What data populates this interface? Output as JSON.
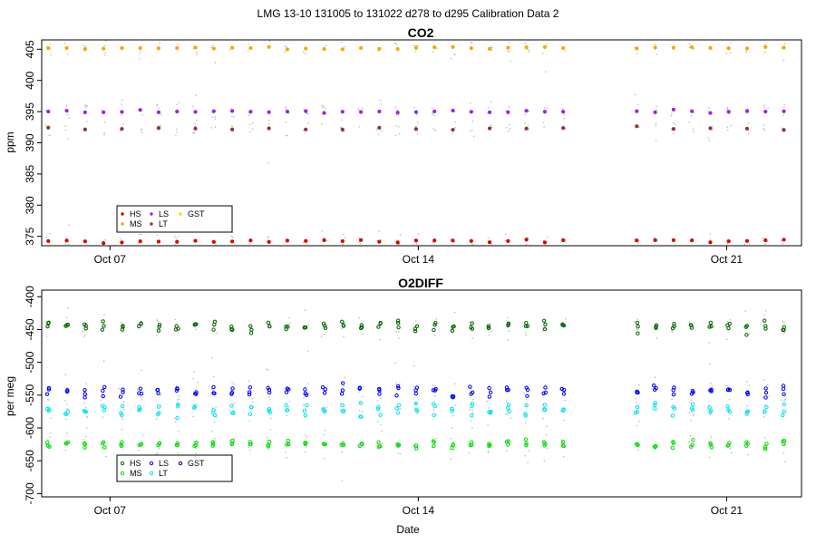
{
  "figure": {
    "supertitle": "LMG   13-10    131005 to 131022    d278 to d295   Calibration Data 2",
    "xlabel": "Date"
  },
  "chart_data": [
    {
      "type": "scatter",
      "title": "CO2",
      "ylabel": "ppm",
      "xlabel": "",
      "x_axis": {
        "type": "date",
        "range": [
          "2013-10-05",
          "2013-10-22"
        ],
        "ticks": [
          "Oct 07",
          "Oct 14",
          "Oct 21"
        ],
        "tick_dates": [
          "2013-10-07",
          "2013-10-14",
          "2013-10-21"
        ]
      },
      "y_axis": {
        "range": [
          373.5,
          406.5
        ],
        "ticks": [
          375,
          380,
          385,
          390,
          395,
          400,
          405
        ]
      },
      "grid": false,
      "legend": {
        "placement": "bottom-left",
        "entries": [
          "HS",
          "MS",
          "LS",
          "LT",
          "GST"
        ]
      },
      "gap": [
        "2013-10-17",
        "2013-10-18"
      ],
      "series": [
        {
          "name": "HS",
          "color": "#e00000",
          "marker": "filled-circle",
          "mean": 374.2
        },
        {
          "name": "MS",
          "color": "#ffa500",
          "marker": "filled-circle",
          "mean": 405.2
        },
        {
          "name": "LS",
          "color": "#a020f0",
          "marker": "filled-circle",
          "mean": 395.0
        },
        {
          "name": "LT",
          "color": "#8b3a3a",
          "marker": "filled-circle",
          "mean": 392.3
        },
        {
          "name": "GST",
          "color": "#ffd700",
          "marker": "filled-circle",
          "mean": null
        }
      ]
    },
    {
      "type": "scatter",
      "title": "O2DIFF",
      "ylabel": "per meg",
      "xlabel": "Date",
      "x_axis": {
        "type": "date",
        "range": [
          "2013-10-05",
          "2013-10-22"
        ],
        "ticks": [
          "Oct 07",
          "Oct 14",
          "Oct 21"
        ],
        "tick_dates": [
          "2013-10-07",
          "2013-10-14",
          "2013-10-21"
        ]
      },
      "y_axis": {
        "range": [
          -705,
          -390
        ],
        "ticks": [
          -400,
          -450,
          -500,
          -550,
          -600,
          -650,
          -700
        ]
      },
      "grid": false,
      "legend": {
        "placement": "bottom-left",
        "entries": [
          "HS",
          "MS",
          "LS",
          "LT",
          "GST"
        ]
      },
      "gap": [
        "2013-10-17",
        "2013-10-18"
      ],
      "series": [
        {
          "name": "HS",
          "color": "#006400",
          "marker": "open-circle",
          "mean": -445
        },
        {
          "name": "MS",
          "color": "#00e000",
          "marker": "open-circle",
          "mean": -625
        },
        {
          "name": "LS",
          "color": "#0000ff",
          "marker": "open-circle",
          "mean": -543
        },
        {
          "name": "LT",
          "color": "#00e5ee",
          "marker": "open-circle",
          "mean": -572
        },
        {
          "name": "GST",
          "color": "#000080",
          "marker": "open-circle",
          "mean": null
        }
      ]
    }
  ]
}
